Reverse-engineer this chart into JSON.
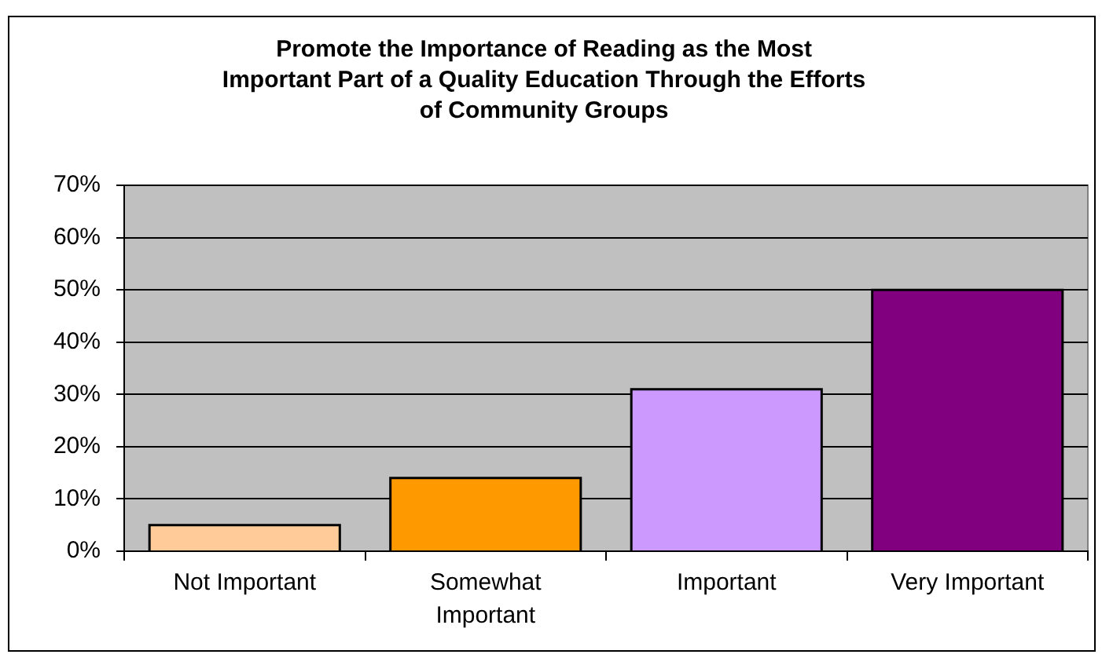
{
  "chart_data": {
    "type": "bar",
    "title": "Promote the Importance of Reading as the Most\nImportant Part of a Quality Education Through the Efforts\nof Community Groups",
    "categories": [
      "Not Important",
      "Somewhat Important",
      "Important",
      "Very Important"
    ],
    "values": [
      5,
      14,
      31,
      50
    ],
    "colors": [
      "#ffcc99",
      "#ff9900",
      "#cc99ff",
      "#800080"
    ],
    "ylim": [
      0,
      70
    ],
    "yticks": [
      {
        "value": 0,
        "label": "0%"
      },
      {
        "value": 10,
        "label": "10%"
      },
      {
        "value": 20,
        "label": "20%"
      },
      {
        "value": 30,
        "label": "30%"
      },
      {
        "value": 40,
        "label": "40%"
      },
      {
        "value": 50,
        "label": "50%"
      },
      {
        "value": 60,
        "label": "60%"
      },
      {
        "value": 70,
        "label": "70%"
      }
    ],
    "grid": "y"
  }
}
